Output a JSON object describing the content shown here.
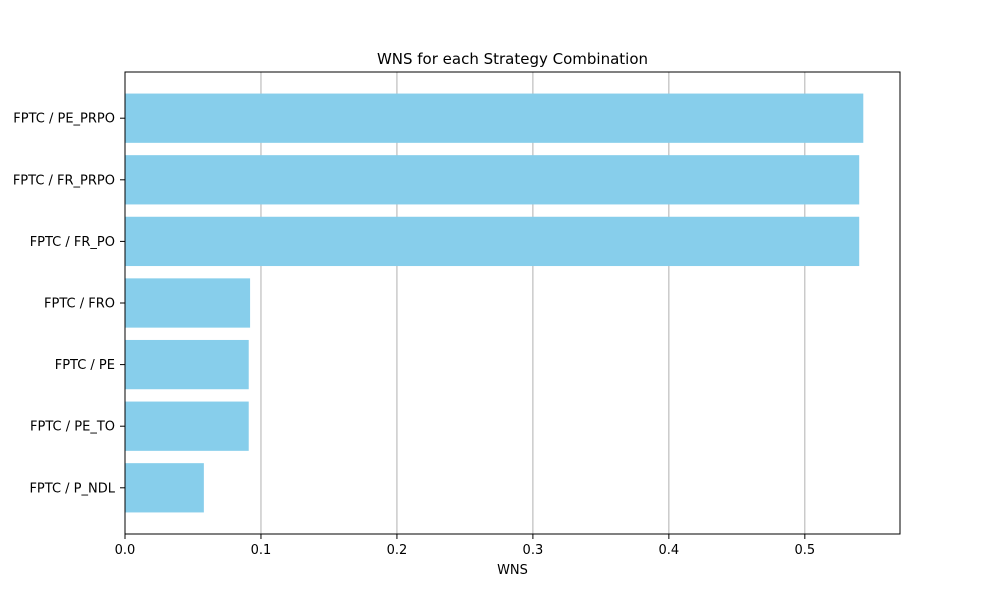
{
  "chart_data": {
    "type": "bar",
    "orientation": "horizontal",
    "title": "WNS for each Strategy Combination",
    "xlabel": "WNS",
    "ylabel": "",
    "xlim": [
      0.0,
      0.57
    ],
    "xticks": [
      0.0,
      0.1,
      0.2,
      0.3,
      0.4,
      0.5
    ],
    "xtick_labels": [
      "0.0",
      "0.1",
      "0.2",
      "0.3",
      "0.4",
      "0.5"
    ],
    "grid": {
      "x": true,
      "y": false
    },
    "legend": "none",
    "bar_color": "#87ceeb",
    "categories": [
      "FPTC / PE_PRPO",
      "FPTC / FR_PRPO",
      "FPTC / FR_PO",
      "FPTC / FRO",
      "FPTC / PE",
      "FPTC / PE_TO",
      "FPTC / P_NDL"
    ],
    "values": [
      0.543,
      0.54,
      0.54,
      0.092,
      0.091,
      0.091,
      0.058
    ]
  }
}
